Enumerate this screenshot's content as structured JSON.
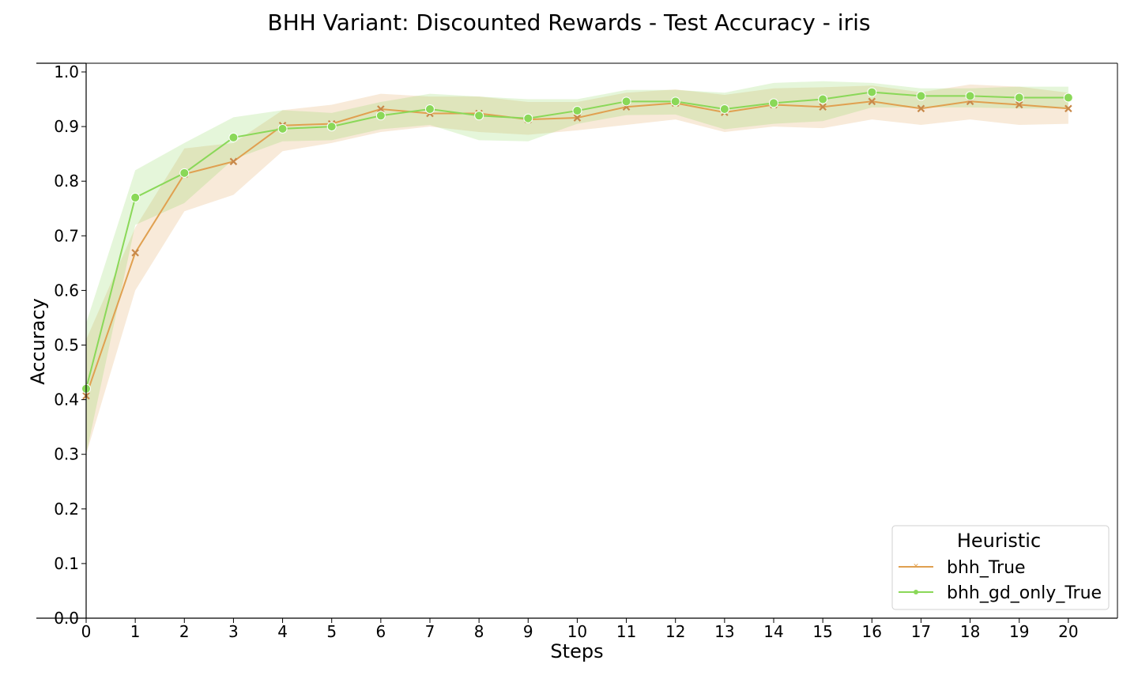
{
  "chart_data": {
    "type": "line",
    "title": "BHH Variant: Discounted Rewards - Test Accuracy - iris",
    "xlabel": "Steps",
    "ylabel": "Accuracy",
    "x": [
      0,
      1,
      2,
      3,
      4,
      5,
      6,
      7,
      8,
      9,
      10,
      11,
      12,
      13,
      14,
      15,
      16,
      17,
      18,
      19,
      20
    ],
    "xlim": [
      0,
      21
    ],
    "ylim": [
      0,
      1.0
    ],
    "x_ticks": [
      "0",
      "1",
      "2",
      "3",
      "4",
      "5",
      "6",
      "7",
      "8",
      "9",
      "10",
      "11",
      "12",
      "13",
      "14",
      "15",
      "16",
      "17",
      "18",
      "19",
      "20"
    ],
    "y_ticks": [
      "0.0",
      "0.1",
      "0.2",
      "0.3",
      "0.4",
      "0.5",
      "0.6",
      "0.7",
      "0.8",
      "0.9",
      "1.0"
    ],
    "grid": false,
    "legend": {
      "title": "Heuristic",
      "placement": "lower-right"
    },
    "series": [
      {
        "name": "bhh_True",
        "color": "#e0a050",
        "marker": "x",
        "values": [
          0.407,
          0.669,
          0.813,
          0.836,
          0.902,
          0.905,
          0.932,
          0.924,
          0.924,
          0.913,
          0.916,
          0.936,
          0.943,
          0.926,
          0.94,
          0.936,
          0.946,
          0.933,
          0.946,
          0.94,
          0.933
        ],
        "ci_lower": [
          0.3,
          0.6,
          0.745,
          0.775,
          0.855,
          0.87,
          0.89,
          0.9,
          0.89,
          0.885,
          0.893,
          0.903,
          0.913,
          0.89,
          0.9,
          0.897,
          0.913,
          0.903,
          0.913,
          0.903,
          0.905
        ],
        "ci_upper": [
          0.51,
          0.715,
          0.86,
          0.87,
          0.93,
          0.94,
          0.96,
          0.955,
          0.955,
          0.945,
          0.945,
          0.962,
          0.968,
          0.958,
          0.97,
          0.972,
          0.975,
          0.963,
          0.977,
          0.973,
          0.962
        ]
      },
      {
        "name": "bhh_gd_only_True",
        "color": "#8ad858",
        "marker": "o",
        "values": [
          0.42,
          0.77,
          0.815,
          0.88,
          0.896,
          0.9,
          0.92,
          0.932,
          0.92,
          0.915,
          0.929,
          0.946,
          0.946,
          0.932,
          0.943,
          0.95,
          0.963,
          0.956,
          0.956,
          0.953,
          0.953
        ],
        "ci_lower": [
          0.3,
          0.72,
          0.76,
          0.84,
          0.873,
          0.875,
          0.895,
          0.903,
          0.875,
          0.873,
          0.905,
          0.921,
          0.922,
          0.895,
          0.905,
          0.91,
          0.935,
          0.935,
          0.935,
          0.933,
          0.933
        ],
        "ci_upper": [
          0.54,
          0.82,
          0.87,
          0.917,
          0.93,
          0.925,
          0.945,
          0.96,
          0.955,
          0.95,
          0.95,
          0.967,
          0.967,
          0.962,
          0.98,
          0.983,
          0.98,
          0.97,
          0.97,
          0.973,
          0.973
        ]
      }
    ]
  }
}
